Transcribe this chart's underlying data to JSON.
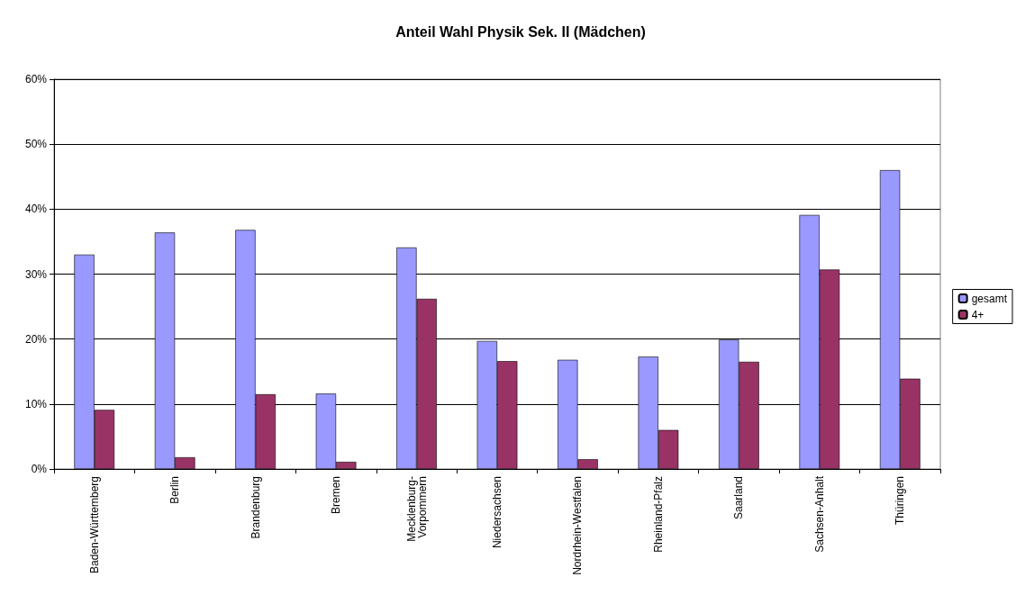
{
  "chart_data": {
    "type": "bar",
    "title": "Anteil Wahl Physik Sek. II (Mädchen)",
    "categories": [
      "Baden-Württemberg",
      "Berlin",
      "Brandenburg",
      "Bremen",
      "Mecklenburg-Vorpommern",
      "Niedersachsen",
      "Nordrhein-Westfalen",
      "Rheinland-Pfalz",
      "Saarland",
      "Sachsen-Anhalt",
      "Thüringen"
    ],
    "series": [
      {
        "name": "gesamt",
        "color": "#9999ff",
        "values": [
          33.0,
          36.4,
          36.8,
          11.6,
          34.1,
          19.7,
          16.8,
          17.3,
          19.9,
          39.1,
          46.0
        ]
      },
      {
        "name": "4+",
        "color": "#993366",
        "values": [
          9.1,
          1.8,
          11.5,
          1.1,
          26.2,
          16.6,
          1.5,
          6.0,
          16.5,
          30.7,
          13.9
        ]
      }
    ],
    "ylim": [
      0,
      60
    ],
    "yticks": [
      {
        "value": 0,
        "label": "0%"
      },
      {
        "value": 10,
        "label": "10%"
      },
      {
        "value": 20,
        "label": "20%"
      },
      {
        "value": 30,
        "label": "30%"
      },
      {
        "value": 40,
        "label": "40%"
      },
      {
        "value": 50,
        "label": "50%"
      },
      {
        "value": 60,
        "label": "60%"
      }
    ],
    "grid": "y",
    "legend": "right"
  }
}
